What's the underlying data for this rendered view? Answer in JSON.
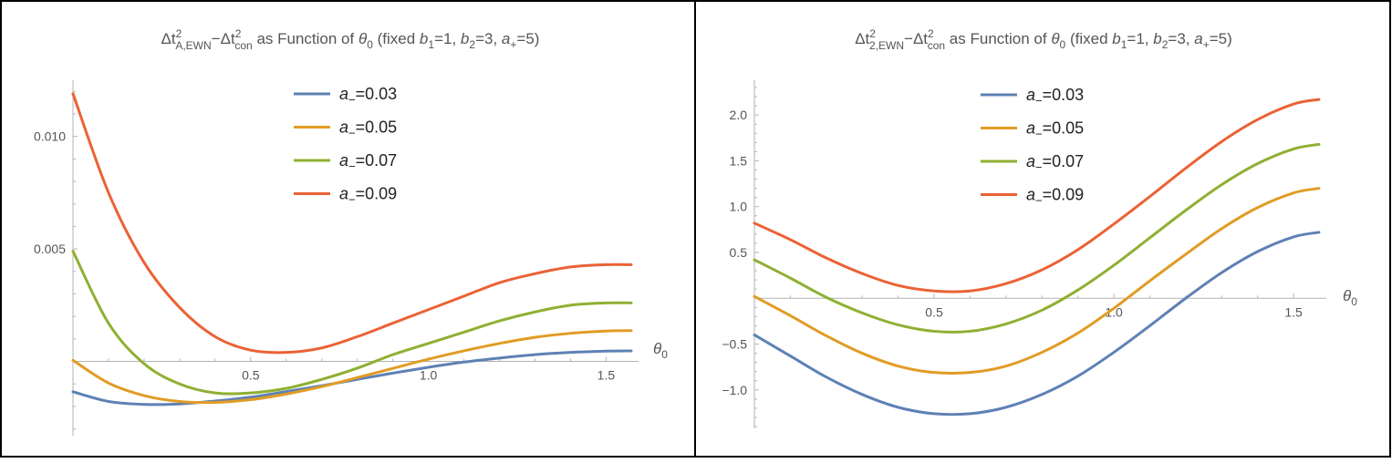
{
  "chart_data": [
    {
      "type": "line",
      "title": {
        "delta1": "Δt",
        "sup1": "2",
        "sub1": "A,EWN",
        "minus": "−",
        "delta2": "Δt",
        "sup2": "2",
        "sub2": "con",
        "rest1": " as Function of ",
        "theta": "θ",
        "theta_sub": "0",
        "rest2": " (fixed ",
        "b1": "b",
        "b1_sub": "1",
        "b1_val": "=1, ",
        "b2": "b",
        "b2_sub": "2",
        "b2_val": "=3, ",
        "ap": "a",
        "ap_sub": "+",
        "ap_val": "=5)"
      },
      "xlabel": {
        "main": "θ",
        "sub": "0"
      },
      "ylabel": "",
      "xlim": [
        0,
        1.5708
      ],
      "ylim": [
        -0.0033,
        0.0125
      ],
      "x_ticks": [
        0.5,
        1.0,
        1.5
      ],
      "x_tick_labels": [
        "0.5",
        "1.0",
        "1.5"
      ],
      "y_ticks": [
        0.005,
        0.01
      ],
      "y_tick_labels": [
        "0.005",
        "0.010"
      ],
      "legend_position": "top-center",
      "series": [
        {
          "name": "a₋=0.03",
          "legend_var": "a",
          "legend_sub": "−",
          "legend_value": "=0.03",
          "color": "#5E81B5",
          "x": [
            0,
            0.1,
            0.2,
            0.3,
            0.4,
            0.5,
            0.6,
            0.7,
            0.8,
            0.9,
            1.0,
            1.1,
            1.2,
            1.3,
            1.4,
            1.5,
            1.5708
          ],
          "values": [
            -0.00135,
            -0.00178,
            -0.00191,
            -0.00189,
            -0.00176,
            -0.00159,
            -0.00134,
            -0.00108,
            -0.0008,
            -0.00052,
            -0.00026,
            -3e-05,
            0.00015,
            0.0003,
            0.0004,
            0.00046,
            0.00047
          ]
        },
        {
          "name": "a₋=0.05",
          "legend_var": "a",
          "legend_sub": "−",
          "legend_value": "=0.05",
          "color": "#E19C24",
          "x": [
            0,
            0.1,
            0.2,
            0.3,
            0.4,
            0.5,
            0.6,
            0.7,
            0.8,
            0.9,
            1.0,
            1.1,
            1.2,
            1.3,
            1.4,
            1.5,
            1.5708
          ],
          "values": [
            5e-05,
            -0.00096,
            -0.00152,
            -0.00178,
            -0.00182,
            -0.0017,
            -0.00145,
            -0.00112,
            -0.00072,
            -0.00031,
            0.0001,
            0.00047,
            0.0008,
            0.00107,
            0.00125,
            0.00135,
            0.00137
          ]
        },
        {
          "name": "a₋=0.07",
          "legend_var": "a",
          "legend_sub": "−",
          "legend_value": "=0.07",
          "color": "#8FB032",
          "x": [
            0,
            0.1,
            0.2,
            0.3,
            0.4,
            0.5,
            0.6,
            0.7,
            0.8,
            0.9,
            1.0,
            1.1,
            1.2,
            1.3,
            1.4,
            1.5,
            1.5708
          ],
          "values": [
            0.0049,
            0.0017,
            -0.0001,
            -0.001,
            -0.0014,
            -0.0014,
            -0.0012,
            -0.0008,
            -0.0003,
            0.0003,
            0.0008,
            0.0013,
            0.0018,
            0.0022,
            0.0025,
            0.0026,
            0.0026
          ]
        },
        {
          "name": "a₋=0.09",
          "legend_var": "a",
          "legend_sub": "−",
          "legend_value": "=0.09",
          "color": "#EB6235",
          "x": [
            0,
            0.1,
            0.2,
            0.3,
            0.4,
            0.5,
            0.6,
            0.7,
            0.8,
            0.9,
            1.0,
            1.1,
            1.2,
            1.3,
            1.4,
            1.5,
            1.5708
          ],
          "values": [
            0.0119,
            0.0075,
            0.0044,
            0.0024,
            0.0011,
            0.0005,
            0.0004,
            0.0006,
            0.0011,
            0.0017,
            0.0023,
            0.0029,
            0.0035,
            0.0039,
            0.0042,
            0.0043,
            0.0043
          ]
        }
      ]
    },
    {
      "type": "line",
      "title": {
        "delta1": "Δt",
        "sup1": "2",
        "sub1": "2,EWN",
        "minus": "−",
        "delta2": "Δt",
        "sup2": "2",
        "sub2": "con",
        "rest1": " as Function of ",
        "theta": "θ",
        "theta_sub": "0",
        "rest2": " (fixed ",
        "b1": "b",
        "b1_sub": "1",
        "b1_val": "=1, ",
        "b2": "b",
        "b2_sub": "2",
        "b2_val": "=3, ",
        "ap": "a",
        "ap_sub": "+",
        "ap_val": "=5)"
      },
      "xlabel": {
        "main": "θ",
        "sub": "0"
      },
      "ylabel": "",
      "xlim": [
        0,
        1.5708
      ],
      "ylim": [
        -1.42,
        2.38
      ],
      "x_ticks": [
        0.5,
        1.0,
        1.5
      ],
      "x_tick_labels": [
        "0.5",
        "1.0",
        "1.5"
      ],
      "y_ticks": [
        -1.0,
        -0.5,
        0.5,
        1.0,
        1.5,
        2.0
      ],
      "y_tick_labels": [
        "−1.0",
        "−0.5",
        "0.5",
        "1.0",
        "1.5",
        "2.0"
      ],
      "legend_position": "top-center",
      "series": [
        {
          "name": "a₋=0.03",
          "legend_var": "a",
          "legend_sub": "−",
          "legend_value": "=0.03",
          "color": "#5E81B5",
          "x": [
            0,
            0.1,
            0.2,
            0.3,
            0.4,
            0.5,
            0.6,
            0.7,
            0.8,
            0.9,
            1.0,
            1.1,
            1.2,
            1.3,
            1.4,
            1.5,
            1.5708
          ],
          "values": [
            -0.4,
            -0.63,
            -0.86,
            -1.05,
            -1.19,
            -1.26,
            -1.26,
            -1.19,
            -1.05,
            -0.85,
            -0.59,
            -0.3,
            0.0,
            0.28,
            0.51,
            0.67,
            0.72
          ]
        },
        {
          "name": "a₋=0.05",
          "legend_var": "a",
          "legend_sub": "−",
          "legend_value": "=0.05",
          "color": "#E19C24",
          "x": [
            0,
            0.1,
            0.2,
            0.3,
            0.4,
            0.5,
            0.6,
            0.7,
            0.8,
            0.9,
            1.0,
            1.1,
            1.2,
            1.3,
            1.4,
            1.5,
            1.5708
          ],
          "values": [
            0.02,
            -0.19,
            -0.41,
            -0.6,
            -0.74,
            -0.81,
            -0.81,
            -0.74,
            -0.59,
            -0.38,
            -0.11,
            0.19,
            0.48,
            0.76,
            0.99,
            1.15,
            1.2
          ]
        },
        {
          "name": "a₋=0.07",
          "legend_var": "a",
          "legend_sub": "−",
          "legend_value": "=0.07",
          "color": "#8FB032",
          "x": [
            0,
            0.1,
            0.2,
            0.3,
            0.4,
            0.5,
            0.6,
            0.7,
            0.8,
            0.9,
            1.0,
            1.1,
            1.2,
            1.3,
            1.4,
            1.5,
            1.5708
          ],
          "values": [
            0.42,
            0.22,
            0.01,
            -0.16,
            -0.29,
            -0.36,
            -0.36,
            -0.28,
            -0.13,
            0.09,
            0.36,
            0.66,
            0.96,
            1.24,
            1.47,
            1.63,
            1.68
          ]
        },
        {
          "name": "a₋=0.09",
          "legend_var": "a",
          "legend_sub": "−",
          "legend_value": "=0.09",
          "color": "#EB6235",
          "x": [
            0,
            0.1,
            0.2,
            0.3,
            0.4,
            0.5,
            0.6,
            0.7,
            0.8,
            0.9,
            1.0,
            1.1,
            1.2,
            1.3,
            1.4,
            1.5,
            1.5708
          ],
          "values": [
            0.82,
            0.64,
            0.44,
            0.27,
            0.14,
            0.08,
            0.08,
            0.16,
            0.31,
            0.53,
            0.81,
            1.11,
            1.42,
            1.71,
            1.95,
            2.12,
            2.17
          ]
        }
      ]
    }
  ]
}
